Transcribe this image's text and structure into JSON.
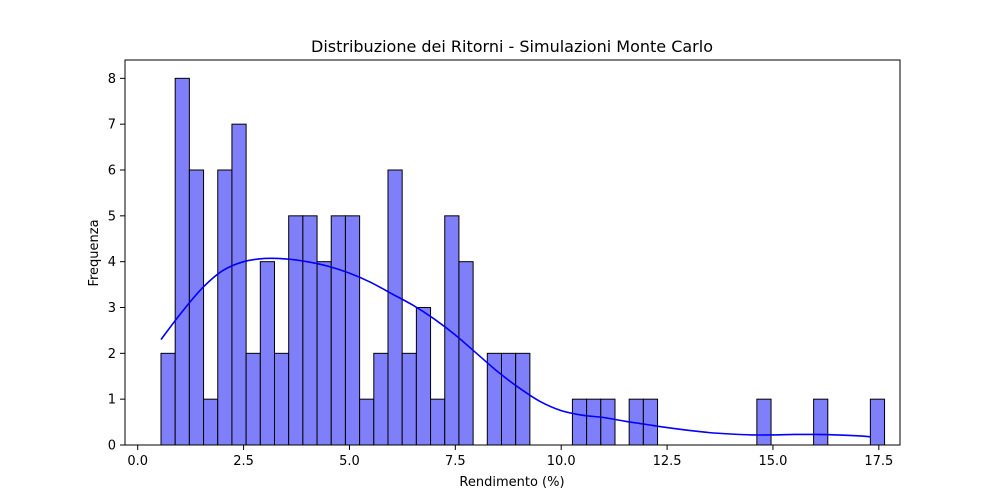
{
  "chart_data": {
    "type": "bar",
    "title": "Distribuzione dei Ritorni - Simulazioni Monte Carlo",
    "xlabel": "Rendimento (%)",
    "ylabel": "Frequenza",
    "xlim": [
      -0.3,
      18.0
    ],
    "ylim": [
      0,
      8.4
    ],
    "x_ticks": [
      0.0,
      2.5,
      5.0,
      7.5,
      10.0,
      12.5,
      15.0,
      17.5
    ],
    "x_tick_labels": [
      "0.0",
      "2.5",
      "5.0",
      "7.5",
      "10.0",
      "12.5",
      "15.0",
      "17.5"
    ],
    "y_ticks": [
      0,
      1,
      2,
      3,
      4,
      5,
      6,
      7,
      8
    ],
    "y_tick_labels": [
      "0",
      "1",
      "2",
      "3",
      "4",
      "5",
      "6",
      "7",
      "8"
    ],
    "grid": false,
    "bins": {
      "start": 0.55,
      "width": 0.335,
      "counts": [
        2,
        8,
        6,
        1,
        6,
        7,
        2,
        4,
        2,
        5,
        5,
        4,
        5,
        5,
        1,
        2,
        6,
        2,
        3,
        1,
        5,
        4,
        0,
        2,
        2,
        2,
        0,
        0,
        0,
        1,
        1,
        1,
        0,
        1,
        1,
        0,
        0,
        0,
        0,
        0,
        0,
        0,
        1,
        0,
        0,
        0,
        1,
        0,
        0,
        0,
        1
      ]
    },
    "bar_color": "#7f7ff9",
    "bar_edge_color": "#000000",
    "kde_curve": {
      "color": "#0000ff",
      "x": [
        0.55,
        1.0,
        1.5,
        2.0,
        2.5,
        3.0,
        3.5,
        4.0,
        4.5,
        5.0,
        5.5,
        6.0,
        6.5,
        7.0,
        7.5,
        8.0,
        8.5,
        9.0,
        9.5,
        10.0,
        10.5,
        11.0,
        11.5,
        12.0,
        12.5,
        13.0,
        13.5,
        14.0,
        14.5,
        15.0,
        15.5,
        16.0,
        16.5,
        17.0,
        17.3
      ],
      "y": [
        2.3,
        2.85,
        3.4,
        3.8,
        4.0,
        4.07,
        4.06,
        4.0,
        3.9,
        3.75,
        3.55,
        3.3,
        3.05,
        2.75,
        2.4,
        2.0,
        1.6,
        1.25,
        0.95,
        0.75,
        0.65,
        0.6,
        0.52,
        0.45,
        0.38,
        0.32,
        0.27,
        0.24,
        0.22,
        0.22,
        0.23,
        0.23,
        0.22,
        0.2,
        0.18
      ]
    }
  }
}
